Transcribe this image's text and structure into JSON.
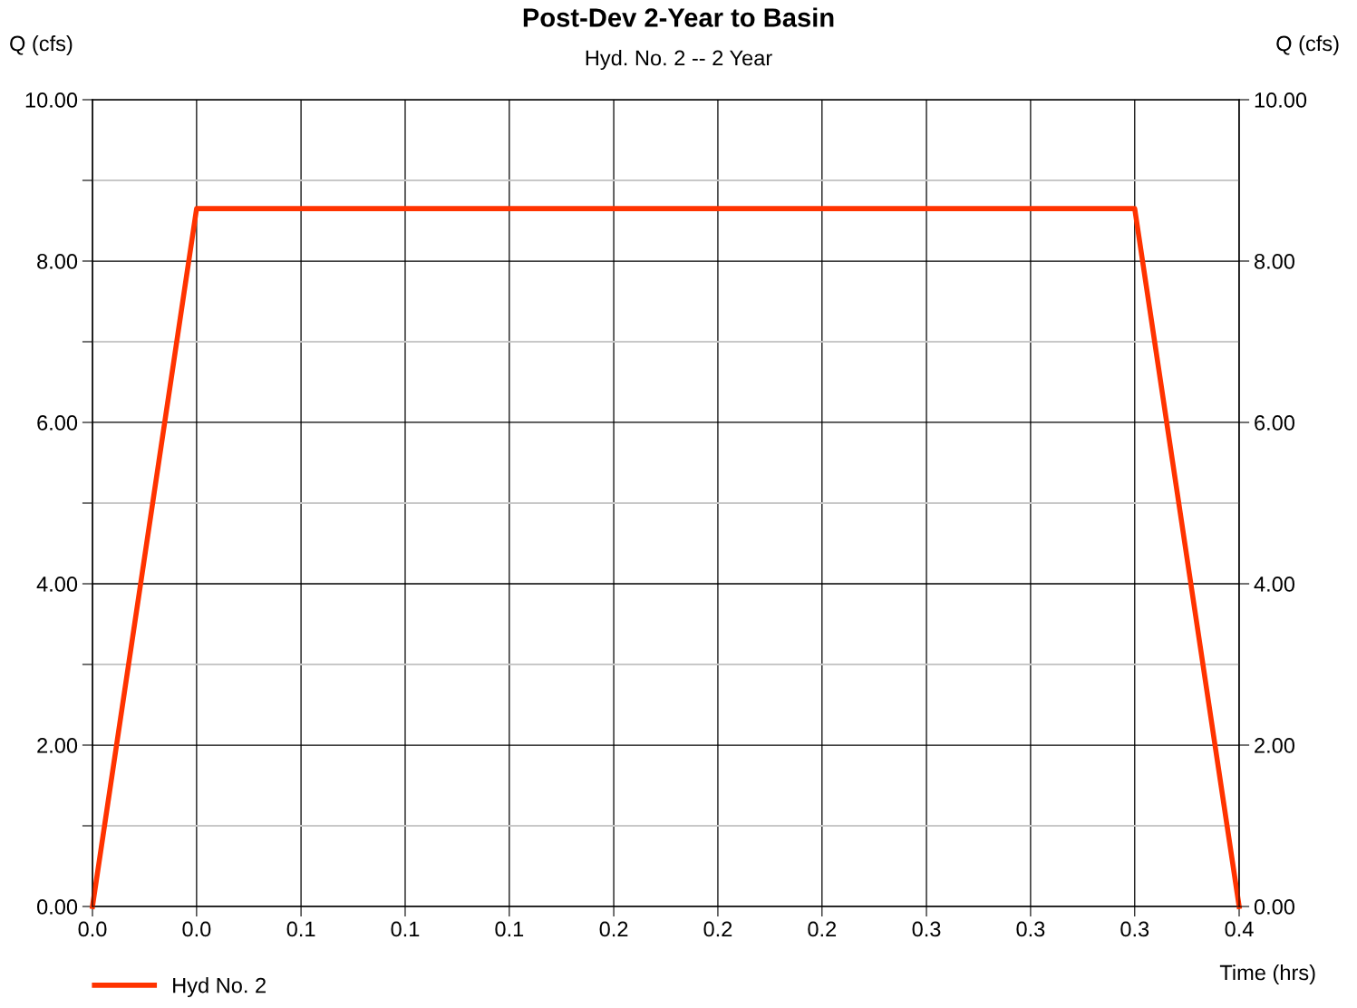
{
  "chart_data": {
    "type": "line",
    "title": "Post-Dev 2-Year to Basin",
    "subtitle": "Hyd. No. 2 -- 2 Year",
    "xlabel": "Time (hrs)",
    "ylabel": "Q (cfs)",
    "y2label": "Q (cfs)",
    "x": [
      0,
      0.0333,
      0.3333,
      0.3667
    ],
    "series": [
      {
        "name": "Hyd No. 2",
        "color": "#ff3300",
        "values": [
          0,
          8.65,
          8.65,
          0
        ]
      }
    ],
    "xlim": [
      0,
      0.3667
    ],
    "xticks": [
      {
        "value": 0,
        "label": "0.0"
      },
      {
        "value": 0.0333,
        "label": "0.0"
      },
      {
        "value": 0.0667,
        "label": "0.1"
      },
      {
        "value": 0.1,
        "label": "0.1"
      },
      {
        "value": 0.1333,
        "label": "0.1"
      },
      {
        "value": 0.1667,
        "label": "0.2"
      },
      {
        "value": 0.2,
        "label": "0.2"
      },
      {
        "value": 0.2333,
        "label": "0.2"
      },
      {
        "value": 0.2667,
        "label": "0.3"
      },
      {
        "value": 0.3,
        "label": "0.3"
      },
      {
        "value": 0.3333,
        "label": "0.3"
      },
      {
        "value": 0.3667,
        "label": "0.4"
      }
    ],
    "ylim": [
      0,
      10
    ],
    "yticks": [
      {
        "value": 0,
        "label": "0.00"
      },
      {
        "value": 1,
        "label": null
      },
      {
        "value": 2,
        "label": "2.00"
      },
      {
        "value": 3,
        "label": null
      },
      {
        "value": 4,
        "label": "4.00"
      },
      {
        "value": 5,
        "label": null
      },
      {
        "value": 6,
        "label": "6.00"
      },
      {
        "value": 7,
        "label": null
      },
      {
        "value": 8,
        "label": "8.00"
      },
      {
        "value": 9,
        "label": null
      },
      {
        "value": 10,
        "label": "10.00"
      }
    ],
    "y2lim": [
      0,
      10
    ],
    "y2ticks": [
      {
        "value": 0,
        "label": "0.00"
      },
      {
        "value": 2,
        "label": "2.00"
      },
      {
        "value": 4,
        "label": "4.00"
      },
      {
        "value": 6,
        "label": "6.00"
      },
      {
        "value": 8,
        "label": "8.00"
      },
      {
        "value": 10,
        "label": "10.00"
      }
    ],
    "grid": true,
    "legend": "bottom left",
    "marker": "none",
    "line_style": "solid"
  }
}
